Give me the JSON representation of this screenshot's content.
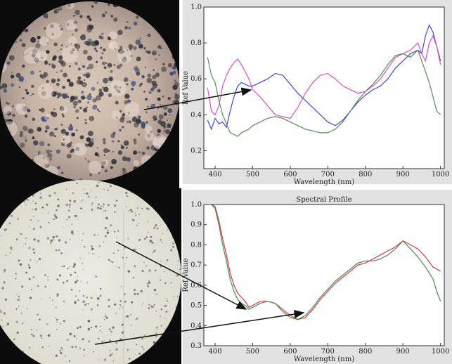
{
  "chart_data": [
    {
      "type": "line",
      "title": "",
      "xlabel": "Wavelength (nm)",
      "ylabel": "Ref Value",
      "xlim": [
        370,
        1010
      ],
      "ylim": [
        0.1,
        1.0
      ],
      "x_ticks": [
        400,
        500,
        600,
        700,
        800,
        900,
        1000
      ],
      "y_ticks": [
        0.2,
        0.4,
        0.6,
        0.8,
        1.0
      ],
      "x_tick_labels": [
        "400",
        "500",
        "600",
        "700",
        "800",
        "900",
        "1000"
      ],
      "y_tick_labels": [
        "0.2",
        "0.4",
        "0.6",
        "0.8",
        "1.0"
      ],
      "grid": false,
      "series": [
        {
          "color": "#4444dd",
          "x": [
            380,
            390,
            400,
            410,
            420,
            430,
            440,
            450,
            460,
            470,
            480,
            490,
            500,
            510,
            520,
            540,
            560,
            580,
            600,
            620,
            640,
            660,
            680,
            700,
            720,
            740,
            760,
            780,
            800,
            820,
            840,
            860,
            880,
            900,
            920,
            940,
            950,
            960,
            970,
            980,
            990,
            1000
          ],
          "y": [
            0.37,
            0.32,
            0.38,
            0.35,
            0.36,
            0.33,
            0.42,
            0.5,
            0.56,
            0.58,
            0.57,
            0.56,
            0.56,
            0.57,
            0.58,
            0.6,
            0.63,
            0.62,
            0.57,
            0.52,
            0.48,
            0.44,
            0.4,
            0.36,
            0.34,
            0.37,
            0.42,
            0.47,
            0.51,
            0.54,
            0.56,
            0.6,
            0.66,
            0.7,
            0.74,
            0.76,
            0.74,
            0.84,
            0.9,
            0.86,
            0.78,
            0.7
          ]
        },
        {
          "color": "#e04ec8",
          "x": [
            380,
            390,
            400,
            410,
            420,
            430,
            440,
            450,
            460,
            470,
            480,
            490,
            500,
            520,
            540,
            560,
            580,
            600,
            620,
            640,
            660,
            680,
            700,
            720,
            740,
            760,
            780,
            800,
            820,
            840,
            860,
            880,
            900,
            920,
            940,
            950,
            960,
            970,
            980,
            990,
            1000
          ],
          "y": [
            0.55,
            0.42,
            0.4,
            0.45,
            0.56,
            0.62,
            0.66,
            0.69,
            0.71,
            0.68,
            0.64,
            0.6,
            0.54,
            0.5,
            0.45,
            0.4,
            0.39,
            0.38,
            0.44,
            0.52,
            0.58,
            0.62,
            0.63,
            0.6,
            0.56,
            0.54,
            0.52,
            0.53,
            0.56,
            0.6,
            0.66,
            0.72,
            0.74,
            0.76,
            0.8,
            0.74,
            0.7,
            0.8,
            0.84,
            0.78,
            0.68
          ]
        },
        {
          "color": "#5a8a5a",
          "x": [
            380,
            390,
            400,
            410,
            420,
            430,
            440,
            450,
            460,
            470,
            480,
            490,
            500,
            520,
            540,
            560,
            580,
            600,
            620,
            640,
            660,
            680,
            700,
            720,
            740,
            760,
            780,
            800,
            820,
            840,
            860,
            880,
            900,
            920,
            940,
            950,
            960,
            970,
            980,
            990,
            1000
          ],
          "y": [
            0.72,
            0.62,
            0.58,
            0.48,
            0.4,
            0.35,
            0.3,
            0.29,
            0.28,
            0.3,
            0.31,
            0.32,
            0.34,
            0.36,
            0.38,
            0.39,
            0.38,
            0.36,
            0.34,
            0.32,
            0.31,
            0.3,
            0.3,
            0.32,
            0.36,
            0.42,
            0.48,
            0.53,
            0.57,
            0.62,
            0.68,
            0.73,
            0.74,
            0.72,
            0.76,
            0.7,
            0.64,
            0.58,
            0.5,
            0.42,
            0.4
          ]
        }
      ]
    },
    {
      "type": "line",
      "title": "Spectral Profile",
      "xlabel": "Wavelength (nm)",
      "ylabel": "Ref Value",
      "xlim": [
        370,
        1010
      ],
      "ylim": [
        0.3,
        1.0
      ],
      "x_ticks": [
        400,
        500,
        600,
        700,
        800,
        900,
        1000
      ],
      "y_ticks": [
        0.3,
        0.4,
        0.5,
        0.6,
        0.7,
        0.8,
        0.9,
        1.0
      ],
      "x_tick_labels": [
        "400",
        "500",
        "600",
        "700",
        "800",
        "900",
        "1000"
      ],
      "y_tick_labels": [
        "0.3",
        "0.4",
        "0.5",
        "0.6",
        "0.7",
        "0.8",
        "0.9",
        "1.0"
      ],
      "grid": false,
      "series": [
        {
          "color": "#e0304a",
          "x": [
            380,
            390,
            400,
            410,
            420,
            430,
            440,
            450,
            460,
            470,
            480,
            490,
            500,
            520,
            540,
            560,
            580,
            600,
            620,
            640,
            660,
            680,
            700,
            720,
            740,
            760,
            780,
            800,
            820,
            840,
            860,
            880,
            900,
            920,
            940,
            960,
            980,
            990,
            1000
          ],
          "y": [
            1.02,
            1.0,
            0.99,
            0.92,
            0.83,
            0.75,
            0.66,
            0.6,
            0.56,
            0.54,
            0.52,
            0.49,
            0.5,
            0.52,
            0.52,
            0.51,
            0.48,
            0.45,
            0.43,
            0.44,
            0.48,
            0.53,
            0.57,
            0.61,
            0.64,
            0.67,
            0.7,
            0.71,
            0.73,
            0.75,
            0.77,
            0.79,
            0.82,
            0.8,
            0.78,
            0.74,
            0.69,
            0.68,
            0.67
          ]
        },
        {
          "color": "#4a8a4a",
          "x": [
            380,
            390,
            400,
            410,
            420,
            430,
            440,
            450,
            460,
            470,
            480,
            490,
            500,
            520,
            540,
            560,
            580,
            600,
            620,
            640,
            660,
            680,
            700,
            720,
            740,
            760,
            780,
            800,
            820,
            840,
            860,
            880,
            900,
            920,
            940,
            960,
            980,
            990,
            1000
          ],
          "y": [
            1.0,
            1.0,
            0.98,
            0.9,
            0.8,
            0.72,
            0.63,
            0.57,
            0.53,
            0.51,
            0.5,
            0.48,
            0.49,
            0.51,
            0.52,
            0.51,
            0.47,
            0.44,
            0.43,
            0.45,
            0.49,
            0.54,
            0.58,
            0.62,
            0.65,
            0.68,
            0.71,
            0.72,
            0.72,
            0.73,
            0.75,
            0.78,
            0.82,
            0.78,
            0.74,
            0.69,
            0.63,
            0.57,
            0.52
          ]
        }
      ]
    }
  ]
}
